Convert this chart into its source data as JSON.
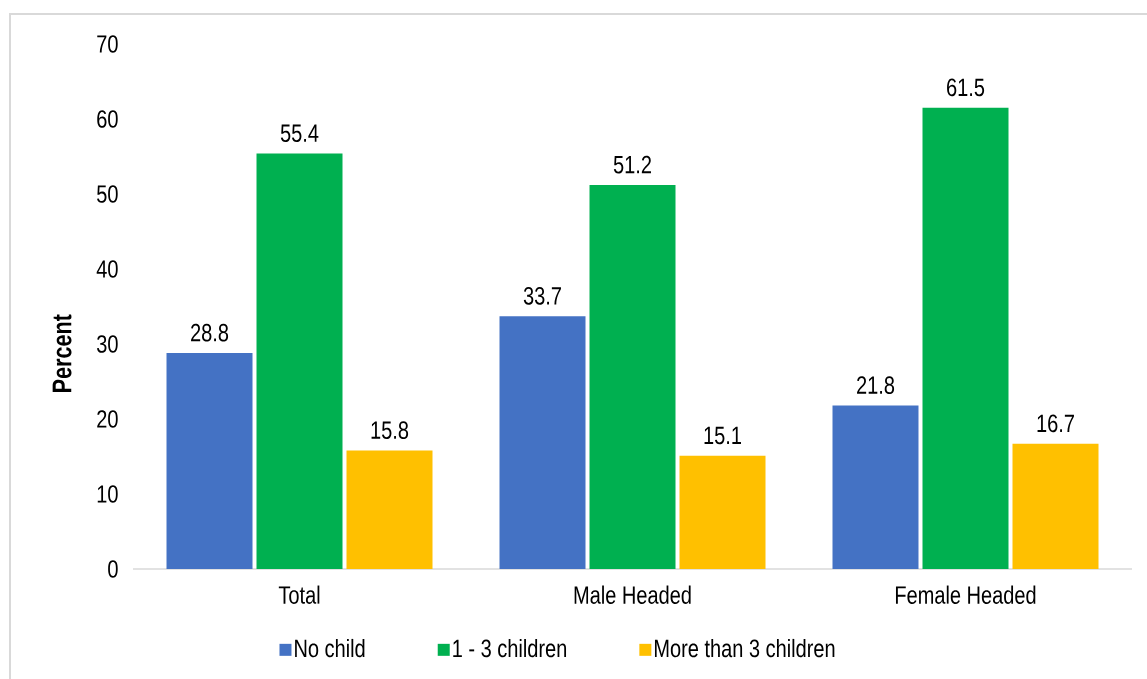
{
  "chart_data": {
    "type": "bar",
    "ylabel": "Percent",
    "categories": [
      "Total",
      "Male Headed",
      "Female Headed"
    ],
    "series": [
      {
        "name": "No child",
        "color": "#4472c4",
        "values": [
          28.8,
          33.7,
          21.8
        ]
      },
      {
        "name": "1 - 3 children",
        "color": "#00b050",
        "values": [
          55.4,
          51.2,
          61.5
        ]
      },
      {
        "name": "More than 3 children",
        "color": "#ffc000",
        "values": [
          15.8,
          15.1,
          16.7
        ]
      }
    ],
    "ylim": [
      0,
      70
    ],
    "yticks": [
      0,
      10,
      20,
      30,
      40,
      50,
      60,
      70
    ],
    "data_labels": true,
    "legend": "bottom"
  }
}
